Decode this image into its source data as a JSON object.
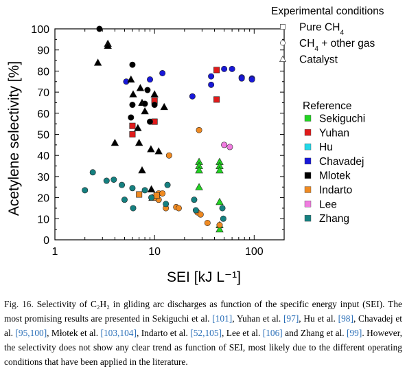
{
  "chart_data": {
    "type": "scatter",
    "xlabel": "SEI",
    "xlabel_unit": "[kJ L⁻¹]",
    "ylabel": "Acetylene selectivity   [%]",
    "xscale": "log",
    "xlim": [
      1,
      200
    ],
    "ylim": [
      0,
      100
    ],
    "xticks": [
      1,
      10,
      100
    ],
    "xtick_labels": [
      "1",
      "10",
      "100"
    ],
    "yticks": [
      0,
      10,
      20,
      30,
      40,
      50,
      60,
      70,
      80,
      90,
      100
    ],
    "ytick_labels": [
      "0",
      "10",
      "20",
      "30",
      "40",
      "50",
      "60",
      "70",
      "80",
      "90",
      "100"
    ],
    "grid": false,
    "legend_markers_title": "Experimental conditions",
    "legend_markers": [
      {
        "shape": "square",
        "label": "Pure CH",
        "sub": "4"
      },
      {
        "shape": "circle",
        "label": "CH",
        "sub": "4",
        "suffix": " + other gas"
      },
      {
        "shape": "triangle",
        "label": "Catalyst"
      }
    ],
    "legend_ref_title": "Reference",
    "series": [
      {
        "name": "Sekiguchi",
        "color": "#22d422",
        "points": [
          {
            "x": 28,
            "y": 37,
            "shape": "triangle"
          },
          {
            "x": 28,
            "y": 35,
            "shape": "triangle"
          },
          {
            "x": 28,
            "y": 33,
            "shape": "triangle"
          },
          {
            "x": 28,
            "y": 25,
            "shape": "triangle"
          },
          {
            "x": 45,
            "y": 37,
            "shape": "triangle"
          },
          {
            "x": 45,
            "y": 35,
            "shape": "triangle"
          },
          {
            "x": 45,
            "y": 33,
            "shape": "triangle"
          },
          {
            "x": 45,
            "y": 18,
            "shape": "triangle"
          },
          {
            "x": 45,
            "y": 7,
            "shape": "triangle"
          },
          {
            "x": 45,
            "y": 5,
            "shape": "triangle"
          }
        ]
      },
      {
        "name": "Yuhan",
        "color": "#e01b1b",
        "points": [
          {
            "x": 42,
            "y": 80.5,
            "shape": "square"
          },
          {
            "x": 42,
            "y": 66.5,
            "shape": "square"
          },
          {
            "x": 10,
            "y": 66,
            "shape": "square"
          },
          {
            "x": 10,
            "y": 56,
            "shape": "square"
          },
          {
            "x": 6,
            "y": 54,
            "shape": "square"
          },
          {
            "x": 6,
            "y": 50,
            "shape": "square"
          }
        ]
      },
      {
        "name": "Hu",
        "color": "#22d8e8",
        "points": []
      },
      {
        "name": "Chavadej",
        "color": "#1818d8",
        "points": [
          {
            "x": 5.2,
            "y": 75,
            "shape": "circle"
          },
          {
            "x": 9,
            "y": 76,
            "shape": "circle"
          },
          {
            "x": 12,
            "y": 79,
            "shape": "circle"
          },
          {
            "x": 24,
            "y": 68,
            "shape": "circle"
          },
          {
            "x": 37,
            "y": 77.5,
            "shape": "circle"
          },
          {
            "x": 37,
            "y": 73.5,
            "shape": "circle"
          },
          {
            "x": 50,
            "y": 81,
            "shape": "circle"
          },
          {
            "x": 60,
            "y": 81,
            "shape": "circle"
          },
          {
            "x": 75,
            "y": 77,
            "shape": "circle"
          },
          {
            "x": 75,
            "y": 76.5,
            "shape": "circle"
          },
          {
            "x": 95,
            "y": 76.5,
            "shape": "circle"
          },
          {
            "x": 95,
            "y": 76,
            "shape": "circle"
          }
        ]
      },
      {
        "name": "Mlotek",
        "color": "#000000",
        "points": [
          {
            "x": 2.8,
            "y": 100,
            "shape": "circle"
          },
          {
            "x": 3.4,
            "y": 93,
            "shape": "triangle"
          },
          {
            "x": 3.4,
            "y": 92,
            "shape": "triangle"
          },
          {
            "x": 2.7,
            "y": 84,
            "shape": "triangle"
          },
          {
            "x": 6,
            "y": 83,
            "shape": "circle"
          },
          {
            "x": 5.8,
            "y": 76,
            "shape": "triangle"
          },
          {
            "x": 7.2,
            "y": 72,
            "shape": "triangle"
          },
          {
            "x": 8.5,
            "y": 71,
            "shape": "circle"
          },
          {
            "x": 6.1,
            "y": 69,
            "shape": "triangle"
          },
          {
            "x": 10,
            "y": 69,
            "shape": "triangle"
          },
          {
            "x": 6,
            "y": 64,
            "shape": "circle"
          },
          {
            "x": 7.5,
            "y": 65,
            "shape": "triangle"
          },
          {
            "x": 8,
            "y": 64.5,
            "shape": "circle"
          },
          {
            "x": 10,
            "y": 64,
            "shape": "circle"
          },
          {
            "x": 12.5,
            "y": 63,
            "shape": "triangle"
          },
          {
            "x": 8,
            "y": 61,
            "shape": "triangle"
          },
          {
            "x": 5.8,
            "y": 58,
            "shape": "circle"
          },
          {
            "x": 9,
            "y": 56,
            "shape": "circle"
          },
          {
            "x": 6.8,
            "y": 53,
            "shape": "triangle"
          },
          {
            "x": 4,
            "y": 46,
            "shape": "triangle"
          },
          {
            "x": 7,
            "y": 46,
            "shape": "triangle"
          },
          {
            "x": 9.2,
            "y": 43,
            "shape": "triangle"
          },
          {
            "x": 11,
            "y": 42,
            "shape": "triangle"
          },
          {
            "x": 7.5,
            "y": 33,
            "shape": "triangle"
          },
          {
            "x": 9.3,
            "y": 24,
            "shape": "triangle"
          },
          {
            "x": 9.5,
            "y": 20,
            "shape": "triangle"
          }
        ]
      },
      {
        "name": "Indarto",
        "color": "#ef8a22",
        "points": [
          {
            "x": 28,
            "y": 52,
            "shape": "circle"
          },
          {
            "x": 14,
            "y": 40,
            "shape": "circle"
          },
          {
            "x": 11,
            "y": 22,
            "shape": "circle"
          },
          {
            "x": 11,
            "y": 19,
            "shape": "circle"
          },
          {
            "x": 10,
            "y": 20,
            "shape": "circle"
          },
          {
            "x": 7,
            "y": 21.5,
            "shape": "square"
          },
          {
            "x": 10.5,
            "y": 21,
            "shape": "square"
          },
          {
            "x": 12,
            "y": 22,
            "shape": "circle"
          },
          {
            "x": 13,
            "y": 15,
            "shape": "circle"
          },
          {
            "x": 16.5,
            "y": 15.5,
            "shape": "circle"
          },
          {
            "x": 17.5,
            "y": 15,
            "shape": "circle"
          },
          {
            "x": 27,
            "y": 13,
            "shape": "circle"
          },
          {
            "x": 29,
            "y": 12,
            "shape": "circle"
          },
          {
            "x": 34,
            "y": 8,
            "shape": "circle"
          },
          {
            "x": 45,
            "y": 7,
            "shape": "circle"
          }
        ]
      },
      {
        "name": "Lee",
        "color": "#f07ce0",
        "points": [
          {
            "x": 50,
            "y": 45,
            "shape": "circle"
          },
          {
            "x": 57,
            "y": 44,
            "shape": "circle"
          }
        ]
      },
      {
        "name": "Zhang",
        "color": "#158080",
        "points": [
          {
            "x": 2,
            "y": 23.5,
            "shape": "circle"
          },
          {
            "x": 2.4,
            "y": 32,
            "shape": "circle"
          },
          {
            "x": 3.3,
            "y": 28,
            "shape": "circle"
          },
          {
            "x": 3.9,
            "y": 28.5,
            "shape": "circle"
          },
          {
            "x": 4.7,
            "y": 26,
            "shape": "circle"
          },
          {
            "x": 5,
            "y": 19,
            "shape": "circle"
          },
          {
            "x": 6,
            "y": 24.5,
            "shape": "circle"
          },
          {
            "x": 6.1,
            "y": 15,
            "shape": "circle"
          },
          {
            "x": 8,
            "y": 23.5,
            "shape": "circle"
          },
          {
            "x": 9.3,
            "y": 20,
            "shape": "circle"
          },
          {
            "x": 13,
            "y": 17,
            "shape": "circle"
          },
          {
            "x": 13.5,
            "y": 26,
            "shape": "circle"
          },
          {
            "x": 25,
            "y": 19,
            "shape": "circle"
          },
          {
            "x": 26,
            "y": 14,
            "shape": "circle"
          },
          {
            "x": 48,
            "y": 15,
            "shape": "circle"
          },
          {
            "x": 49,
            "y": 10,
            "shape": "circle"
          }
        ]
      }
    ]
  },
  "caption": {
    "label": "Fig.  16.",
    "segments": [
      {
        "t": " Selectivity of C₂H₂ in gliding arc discharges as function of the specific energy input (SEI). The most promising results are presented in Sekiguchi et al. ",
        "ref": false
      },
      {
        "t": "[101]",
        "ref": true
      },
      {
        "t": ", Yuhan et al. ",
        "ref": false
      },
      {
        "t": "[97]",
        "ref": true
      },
      {
        "t": ", Hu et al. ",
        "ref": false
      },
      {
        "t": "[98]",
        "ref": true
      },
      {
        "t": ", Chavadej et al. ",
        "ref": false
      },
      {
        "t": "[95,100]",
        "ref": true
      },
      {
        "t": ", Młotek et al. ",
        "ref": false
      },
      {
        "t": "[103,104]",
        "ref": true
      },
      {
        "t": ", Indarto et al. ",
        "ref": false
      },
      {
        "t": "[52,105]",
        "ref": true
      },
      {
        "t": ", Lee et al. ",
        "ref": false
      },
      {
        "t": "[106]",
        "ref": true
      },
      {
        "t": " and Zhang et al. ",
        "ref": false
      },
      {
        "t": "[99]",
        "ref": true
      },
      {
        "t": ". However, the selectivity does not show any clear trend as function of SEI, most likely due to the different operating conditions that have been applied in the literature.",
        "ref": false
      }
    ]
  }
}
